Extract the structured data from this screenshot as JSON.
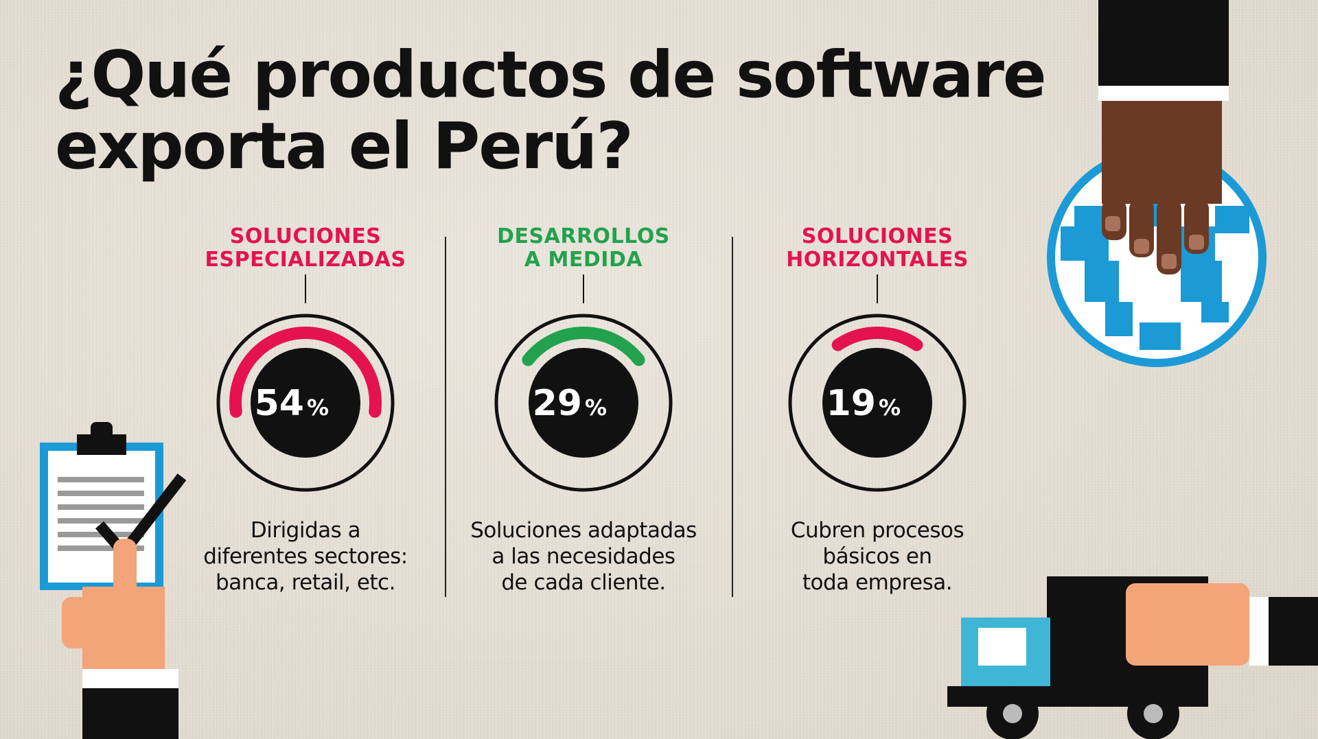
{
  "title": {
    "line1": "¿Qué productos de software",
    "line2": "exporta el Perú?"
  },
  "colors": {
    "red": "#e4134f",
    "green": "#23a24d",
    "black": "#111111"
  },
  "categories": [
    {
      "title_line1": "SOLUCIONES",
      "title_line2": "ESPECIALIZADAS",
      "value": "54",
      "unit": "%",
      "percent": 54,
      "color": "#e4134f",
      "desc_line1": "Dirigidas a",
      "desc_line2": "diferentes sectores:",
      "desc_line3": "banca, retail, etc."
    },
    {
      "title_line1": "DESARROLLOS",
      "title_line2": "A MEDIDA",
      "value": "29",
      "unit": "%",
      "percent": 29,
      "color": "#23a24d",
      "desc_line1": "Soluciones adaptadas",
      "desc_line2": "a las necesidades",
      "desc_line3": "de cada cliente."
    },
    {
      "title_line1": "SOLUCIONES",
      "title_line2": "HORIZONTALES",
      "value": "19",
      "unit": "%",
      "percent": 19,
      "color": "#e4134f",
      "desc_line1": "Cubren procesos",
      "desc_line2": "básicos en",
      "desc_line3": "toda empresa."
    }
  ],
  "icons": {
    "globe": "globe-with-hand-icon",
    "clipboard": "clipboard-checklist-icon",
    "truck": "delivery-truck-icon"
  }
}
